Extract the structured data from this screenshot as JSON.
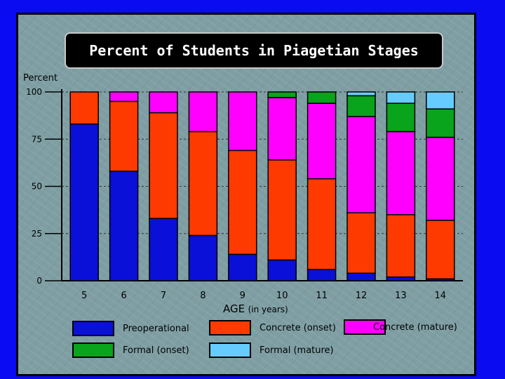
{
  "chart_data": {
    "type": "bar",
    "stacked": true,
    "title": "Percent of Students in Piagetian Stages",
    "ylabel": "Percent",
    "xlabel": "AGE",
    "xlabel_suffix": "(in years)",
    "ylim": [
      0,
      100
    ],
    "yticks": [
      0,
      25,
      50,
      75,
      100
    ],
    "categories": [
      "5",
      "6",
      "7",
      "8",
      "9",
      "10",
      "11",
      "12",
      "13",
      "14"
    ],
    "series": [
      {
        "name": "Preoperational",
        "color": "#0a10d8",
        "values": [
          83,
          58,
          33,
          24,
          14,
          11,
          6,
          4,
          2,
          1
        ]
      },
      {
        "name": "Concrete (onset)",
        "color": "#ff3a00",
        "values": [
          17,
          37,
          56,
          55,
          55,
          53,
          48,
          32,
          33,
          31
        ]
      },
      {
        "name": "Concrete (mature)",
        "color": "#ff00ff",
        "values": [
          0,
          5,
          11,
          21,
          31,
          33,
          40,
          51,
          44,
          44
        ]
      },
      {
        "name": "Formal (onset)",
        "color": "#0aa31c",
        "values": [
          0,
          0,
          0,
          0,
          0,
          3,
          6,
          11,
          15,
          15
        ]
      },
      {
        "name": "Formal (mature)",
        "color": "#66ccff",
        "values": [
          0,
          0,
          0,
          0,
          0,
          0,
          0,
          2,
          6,
          9
        ]
      }
    ]
  }
}
